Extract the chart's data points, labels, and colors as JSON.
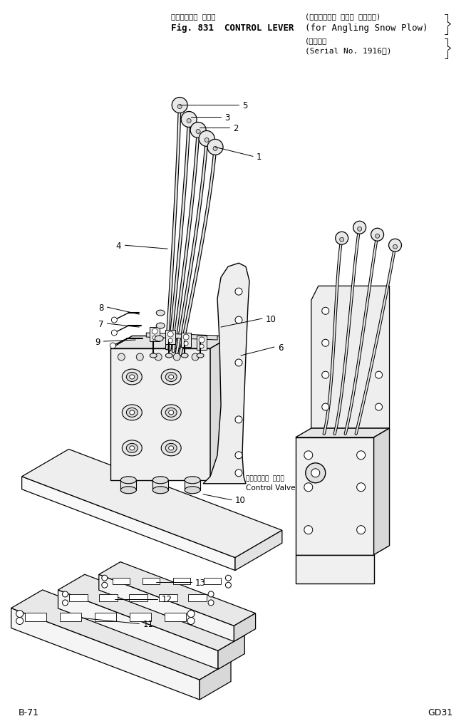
{
  "title_line1_ja": "コントロール レバー",
  "title_line1_en_bracket": "(アングリング スノウ プラウ用)",
  "title_line2": "Fig. 831  CONTROL LEVER  (for Angling Snow Plow)",
  "title_line3_ja": "(適用号機",
  "title_line4": "(Serial No. 1916～)",
  "control_valve_ja": "コントロール バルブ",
  "control_valve_en": "Control Valve",
  "footer_left": "B-71",
  "footer_right": "GD31",
  "bg": "#ffffff",
  "lc": "#000000",
  "figsize": [
    6.61,
    10.2
  ],
  "dpi": 100
}
